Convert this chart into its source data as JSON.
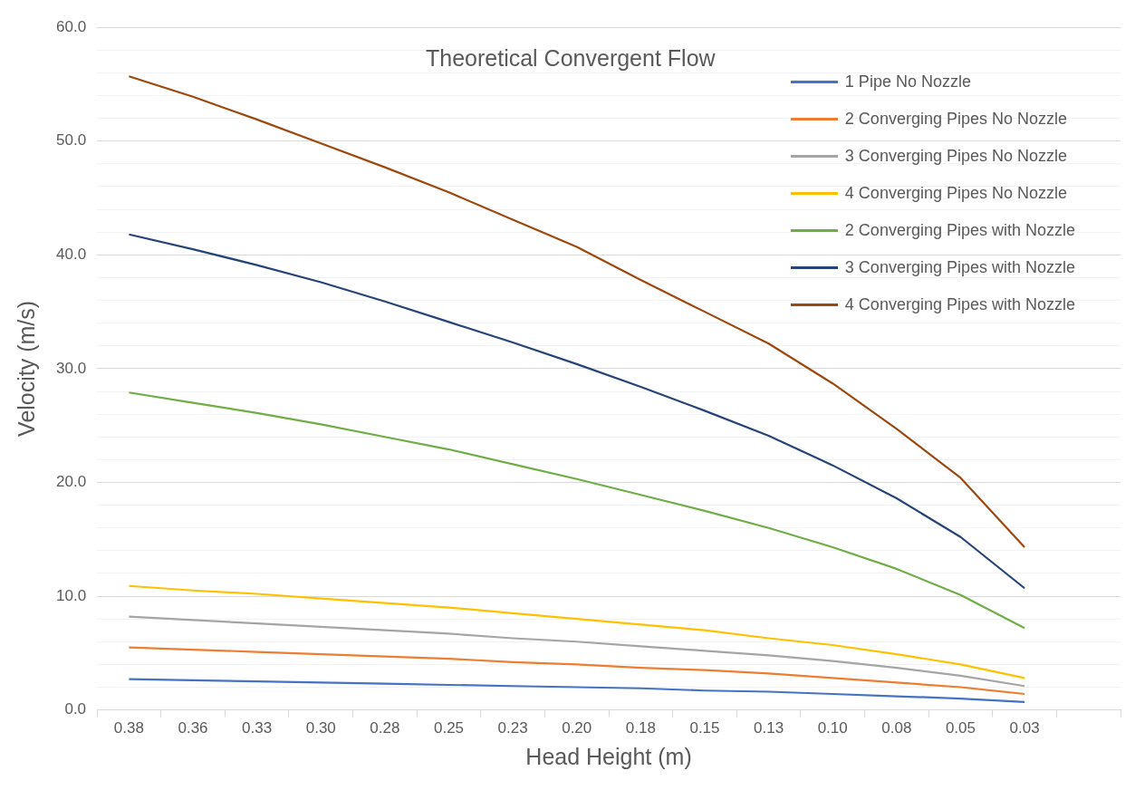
{
  "chart_data": {
    "type": "line",
    "title": "Theoretical Convergent Flow",
    "xlabel": "Head Height (m)",
    "ylabel": "Velocity (m/s)",
    "categories": [
      "0.38",
      "0.36",
      "0.33",
      "0.30",
      "0.28",
      "0.25",
      "0.23",
      "0.20",
      "0.18",
      "0.15",
      "0.13",
      "0.10",
      "0.08",
      "0.05",
      "0.03",
      null
    ],
    "series": [
      {
        "name": "1 Pipe No Nozzle",
        "color": "#4472c4",
        "values": [
          2.7,
          2.6,
          2.5,
          2.4,
          2.3,
          2.2,
          2.1,
          2.0,
          1.9,
          1.7,
          1.6,
          1.4,
          1.2,
          1.0,
          0.7,
          null
        ]
      },
      {
        "name": "2 Converging Pipes No Nozzle",
        "color": "#ed7d31",
        "values": [
          5.5,
          5.3,
          5.1,
          4.9,
          4.7,
          4.5,
          4.2,
          4.0,
          3.7,
          3.5,
          3.2,
          2.8,
          2.4,
          2.0,
          1.4,
          null
        ]
      },
      {
        "name": "3 Converging Pipes No Nozzle",
        "color": "#a5a5a5",
        "values": [
          8.2,
          7.9,
          7.6,
          7.3,
          7.0,
          6.7,
          6.3,
          6.0,
          5.6,
          5.2,
          4.8,
          4.3,
          3.7,
          3.0,
          2.1,
          null
        ]
      },
      {
        "name": "4 Converging Pipes No Nozzle",
        "color": "#ffc000",
        "values": [
          10.9,
          10.5,
          10.2,
          9.8,
          9.4,
          9.0,
          8.5,
          8.0,
          7.5,
          7.0,
          6.3,
          5.7,
          4.9,
          4.0,
          2.8,
          null
        ]
      },
      {
        "name": "2 Converging Pipes with Nozzle",
        "color": "#70ad47",
        "values": [
          27.9,
          27.0,
          26.1,
          25.1,
          24.0,
          22.9,
          21.6,
          20.3,
          18.9,
          17.5,
          16.0,
          14.3,
          12.4,
          10.1,
          7.2,
          null
        ]
      },
      {
        "name": "3 Converging Pipes with Nozzle",
        "color": "#264478",
        "values": [
          41.8,
          40.5,
          39.1,
          37.6,
          35.9,
          34.1,
          32.3,
          30.4,
          28.4,
          26.3,
          24.1,
          21.5,
          18.6,
          15.2,
          10.7,
          null
        ]
      },
      {
        "name": "4 Converging Pipes with Nozzle",
        "color": "#9e480e",
        "values": [
          55.7,
          53.9,
          51.9,
          49.8,
          47.7,
          45.5,
          43.1,
          40.7,
          37.8,
          35.0,
          32.2,
          28.7,
          24.7,
          20.4,
          14.3,
          null
        ]
      }
    ],
    "ylim": [
      0,
      60
    ],
    "yticks": [
      {
        "value": 0,
        "label": "0.0"
      },
      {
        "value": 2,
        "label": null
      },
      {
        "value": 4,
        "label": null
      },
      {
        "value": 6,
        "label": null
      },
      {
        "value": 8,
        "label": null
      },
      {
        "value": 10,
        "label": "10.0"
      },
      {
        "value": 12,
        "label": null
      },
      {
        "value": 14,
        "label": null
      },
      {
        "value": 16,
        "label": null
      },
      {
        "value": 18,
        "label": null
      },
      {
        "value": 20,
        "label": "20.0"
      },
      {
        "value": 22,
        "label": null
      },
      {
        "value": 24,
        "label": null
      },
      {
        "value": 26,
        "label": null
      },
      {
        "value": 28,
        "label": null
      },
      {
        "value": 30,
        "label": "30.0"
      },
      {
        "value": 32,
        "label": null
      },
      {
        "value": 34,
        "label": null
      },
      {
        "value": 36,
        "label": null
      },
      {
        "value": 38,
        "label": null
      },
      {
        "value": 40,
        "label": "40.0"
      },
      {
        "value": 42,
        "label": null
      },
      {
        "value": 44,
        "label": null
      },
      {
        "value": 46,
        "label": null
      },
      {
        "value": 48,
        "label": null
      },
      {
        "value": 50,
        "label": "50.0"
      },
      {
        "value": 52,
        "label": null
      },
      {
        "value": 54,
        "label": null
      },
      {
        "value": 56,
        "label": null
      },
      {
        "value": 58,
        "label": null
      },
      {
        "value": 60,
        "label": "60.0"
      }
    ],
    "grid": "y",
    "legend": "top right",
    "marker": "none",
    "line_style": "solid"
  }
}
